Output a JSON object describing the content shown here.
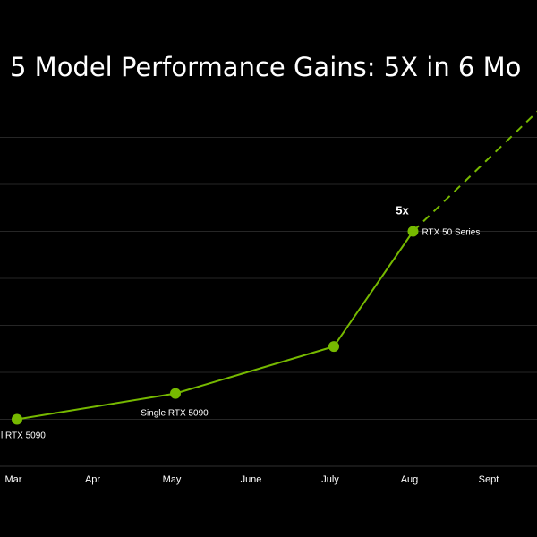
{
  "chart_data": {
    "type": "line",
    "title": "5 Model Performance Gains: 5X in 6 Mo",
    "xlabel": "",
    "ylabel": "",
    "categories": [
      "Mar",
      "Apr",
      "May",
      "June",
      "July",
      "Aug",
      "Sept"
    ],
    "x_range": [
      0,
      6.6
    ],
    "ylim": [
      0,
      7.5
    ],
    "grid": true,
    "colors": {
      "line": "#76b900",
      "grid": "#262626",
      "background": "#000000",
      "text": "#ffffff"
    },
    "series": [
      {
        "style": "solid",
        "points": [
          {
            "x": 0,
            "y": 1.0,
            "label": "l RTX 5090"
          },
          {
            "x": 2,
            "y": 1.55,
            "label": "Single RTX 5090"
          },
          {
            "x": 4,
            "y": 2.55,
            "label": ""
          },
          {
            "x": 5,
            "y": 5.0,
            "label": "RTX 50 Series"
          }
        ]
      },
      {
        "style": "dashed",
        "points": [
          {
            "x": 5,
            "y": 5.0
          },
          {
            "x": 6.6,
            "y": 7.6
          }
        ]
      }
    ],
    "annotations": [
      {
        "text": "5x",
        "x": 5,
        "y": 5.0
      }
    ]
  }
}
